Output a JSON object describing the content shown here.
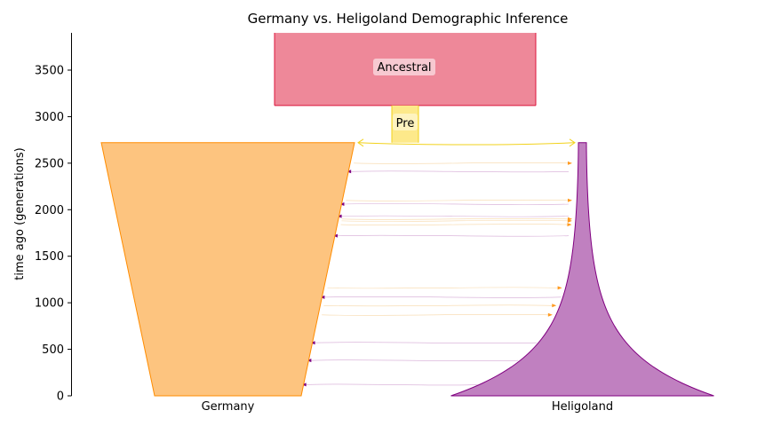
{
  "chart_data": {
    "type": "demography",
    "title": "Germany vs. Heligoland Demographic Inference",
    "ylabel": "time ago (generations)",
    "xlabel": "",
    "ylim": [
      0,
      3900
    ],
    "yticks": [
      0,
      500,
      1000,
      1500,
      2000,
      2500,
      3000,
      3500
    ],
    "grid": false,
    "populations": [
      {
        "name": "Ancestral",
        "start_time": 3120,
        "end_time": 3900,
        "color": "#ee8899",
        "edge": "#dc143c"
      },
      {
        "name": "Pre",
        "start_time": 2720,
        "end_time": 3120,
        "color": "#fde98a",
        "edge": "#f2d21b"
      },
      {
        "name": "Germany",
        "start_time": 0,
        "end_time": 2720,
        "color": "#fdc47f",
        "edge": "#ff8c00"
      },
      {
        "name": "Heligoland",
        "start_time": 0,
        "end_time": 2720,
        "color": "#c080c0",
        "edge": "#800080"
      }
    ],
    "split": {
      "time": 2720,
      "parent": "Pre",
      "children": [
        "Germany",
        "Heligoland"
      ]
    },
    "migrations_to_germany": [
      2410,
      2060,
      1930,
      1720,
      1060,
      570,
      380,
      120
    ],
    "migrations_to_heligoland": [
      2500,
      2100,
      1900,
      1880,
      1840,
      1160,
      970,
      870
    ]
  }
}
